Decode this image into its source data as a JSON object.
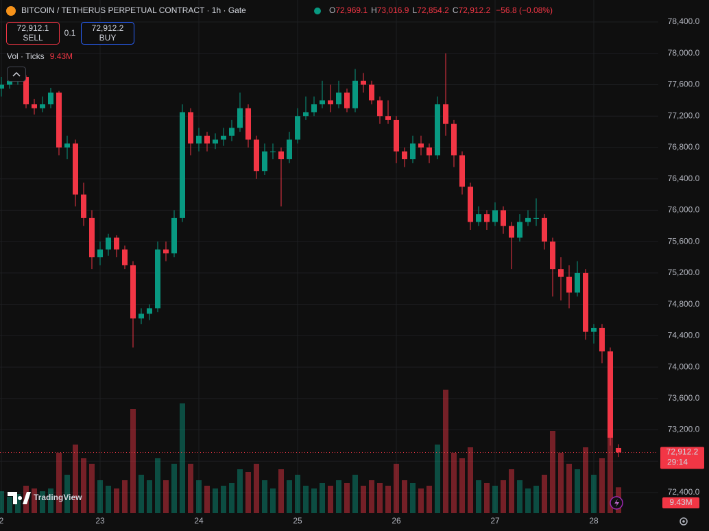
{
  "header": {
    "title": "BITCOIN / TETHERUS PERPETUAL CONTRACT · 1h · Gate",
    "o_key": "O",
    "o": "72,969.1",
    "h_key": "H",
    "h": "73,016.9",
    "l_key": "L",
    "l": "72,854.2",
    "c_key": "C",
    "c": "72,912.2",
    "change": "−56.8 (−0.08%)",
    "sell_price": "72,912.1",
    "sell": "SELL",
    "qty": "0.1",
    "buy_price": "72,912.2",
    "buy": "BUY",
    "vol_title": "Vol · Ticks",
    "vol_value": "9.43M",
    "logo": "TradingView"
  },
  "chart_data": {
    "type": "candlestick",
    "up_color": "#089981",
    "down_color": "#f23645",
    "categories": [
      "2",
      null,
      null,
      null,
      null,
      null,
      null,
      null,
      null,
      null,
      null,
      null,
      "23",
      null,
      null,
      null,
      null,
      null,
      null,
      null,
      null,
      null,
      null,
      null,
      "24",
      null,
      null,
      null,
      null,
      null,
      null,
      null,
      null,
      null,
      null,
      null,
      "25",
      null,
      null,
      null,
      null,
      null,
      null,
      null,
      null,
      null,
      null,
      null,
      "26",
      null,
      null,
      null,
      null,
      null,
      null,
      null,
      null,
      null,
      null,
      null,
      "27",
      null,
      null,
      null,
      null,
      null,
      null,
      null,
      null,
      null,
      null,
      null,
      "28",
      null,
      null,
      null
    ],
    "open": [
      77550,
      77600,
      77650,
      77700,
      77350,
      77300,
      77350,
      77500,
      76800,
      76850,
      76200,
      75900,
      75400,
      75500,
      75650,
      75500,
      75300,
      74620,
      74680,
      74750,
      75500,
      75450,
      75900,
      77250,
      76850,
      76950,
      76850,
      76900,
      76950,
      77050,
      77300,
      76900,
      76500,
      76750,
      76750,
      76650,
      76900,
      77200,
      77250,
      77350,
      77400,
      77350,
      77500,
      77300,
      77650,
      77600,
      77400,
      77200,
      77150,
      76750,
      76650,
      76850,
      76800,
      76700,
      77350,
      77100,
      76700,
      76300,
      75850,
      75950,
      75850,
      76000,
      75800,
      75650,
      75850,
      75900,
      75900,
      75600,
      75250,
      75150,
      74950,
      75200,
      74450,
      74500,
      74200,
      72969.1
    ],
    "high": [
      77700,
      77720,
      77780,
      77720,
      77420,
      77450,
      77560,
      77520,
      76950,
      76900,
      76350,
      76000,
      75600,
      75700,
      75680,
      75550,
      75350,
      74750,
      74800,
      75600,
      75600,
      76000,
      77350,
      77300,
      77050,
      77000,
      76980,
      77050,
      77150,
      77500,
      77350,
      76950,
      76850,
      76850,
      76800,
      77000,
      77300,
      77450,
      77450,
      77650,
      77600,
      77650,
      77550,
      77800,
      77750,
      77650,
      77450,
      77400,
      77200,
      76800,
      76950,
      76950,
      76850,
      77450,
      78000,
      77150,
      76750,
      76350,
      76050,
      76000,
      76100,
      76050,
      75850,
      75950,
      76000,
      76150,
      75950,
      75650,
      75400,
      75300,
      75350,
      75250,
      74550,
      74550,
      74250,
      73016.9
    ],
    "low": [
      77450,
      77550,
      77600,
      77300,
      77220,
      77250,
      77300,
      76700,
      76650,
      76050,
      75800,
      75250,
      75300,
      75420,
      75400,
      75250,
      74250,
      74550,
      74600,
      74700,
      75350,
      75400,
      75850,
      76700,
      76750,
      76750,
      76780,
      76820,
      76880,
      77000,
      76800,
      76400,
      76450,
      76650,
      76050,
      76600,
      76850,
      77150,
      77200,
      77300,
      77250,
      77300,
      77250,
      77250,
      77500,
      77350,
      77100,
      77100,
      76600,
      76550,
      76600,
      76700,
      76600,
      76650,
      76950,
      76550,
      76200,
      75750,
      75800,
      75750,
      75800,
      75700,
      75250,
      75600,
      75800,
      75800,
      75500,
      74900,
      74850,
      74750,
      74900,
      74350,
      74300,
      74050,
      73000,
      72854.2
    ],
    "close": [
      77600,
      77650,
      77700,
      77350,
      77300,
      77350,
      77500,
      76800,
      76850,
      76200,
      75900,
      75400,
      75500,
      75650,
      75500,
      75300,
      74620,
      74680,
      74750,
      75500,
      75450,
      75900,
      77250,
      76850,
      76950,
      76850,
      76900,
      76950,
      77050,
      77300,
      76900,
      76500,
      76750,
      76750,
      76650,
      76900,
      77200,
      77250,
      77350,
      77400,
      77350,
      77500,
      77300,
      77650,
      77600,
      77400,
      77200,
      77150,
      76750,
      76650,
      76850,
      76800,
      76700,
      77350,
      77100,
      76700,
      76300,
      75850,
      75950,
      75850,
      76000,
      75800,
      75650,
      75850,
      75900,
      75900,
      75600,
      75250,
      75150,
      74950,
      75200,
      74450,
      74500,
      74200,
      73100,
      72912.2
    ],
    "volume": [
      8,
      6,
      7,
      10,
      9,
      8,
      9,
      22,
      14,
      25,
      20,
      18,
      12,
      10,
      9,
      12,
      38,
      14,
      12,
      20,
      12,
      18,
      40,
      18,
      12,
      10,
      9,
      10,
      11,
      16,
      15,
      18,
      12,
      9,
      16,
      12,
      14,
      10,
      9,
      11,
      10,
      12,
      11,
      14,
      10,
      12,
      11,
      10,
      18,
      12,
      11,
      9,
      10,
      25,
      45,
      22,
      20,
      24,
      12,
      11,
      10,
      12,
      16,
      12,
      9,
      10,
      14,
      30,
      22,
      18,
      16,
      24,
      14,
      20,
      45,
      9.43
    ],
    "close_label": "72,912.2",
    "countdown": "29:14",
    "ylim": [
      72138,
      78680
    ],
    "yticks": [
      {
        "value": 72400,
        "label": "72,400.0"
      },
      {
        "value": 72800,
        "label": "72,800.0"
      },
      {
        "value": 73200,
        "label": "73,200.0"
      },
      {
        "value": 73600,
        "label": "73,600.0"
      },
      {
        "value": 74000,
        "label": "74,000.0"
      },
      {
        "value": 74400,
        "label": "74,400.0"
      },
      {
        "value": 74800,
        "label": "74,800.0"
      },
      {
        "value": 75200,
        "label": "75,200.0"
      },
      {
        "value": 75600,
        "label": "75,600.0"
      },
      {
        "value": 76000,
        "label": "76,000.0"
      },
      {
        "value": 76400,
        "label": "76,400.0"
      },
      {
        "value": 76800,
        "label": "76,800.0"
      },
      {
        "value": 77200,
        "label": "77,200.0"
      },
      {
        "value": 77600,
        "label": "77,600.0"
      },
      {
        "value": 78000,
        "label": "78,000.0"
      },
      {
        "value": 78400,
        "label": "78,400.0"
      }
    ],
    "grid": true
  }
}
